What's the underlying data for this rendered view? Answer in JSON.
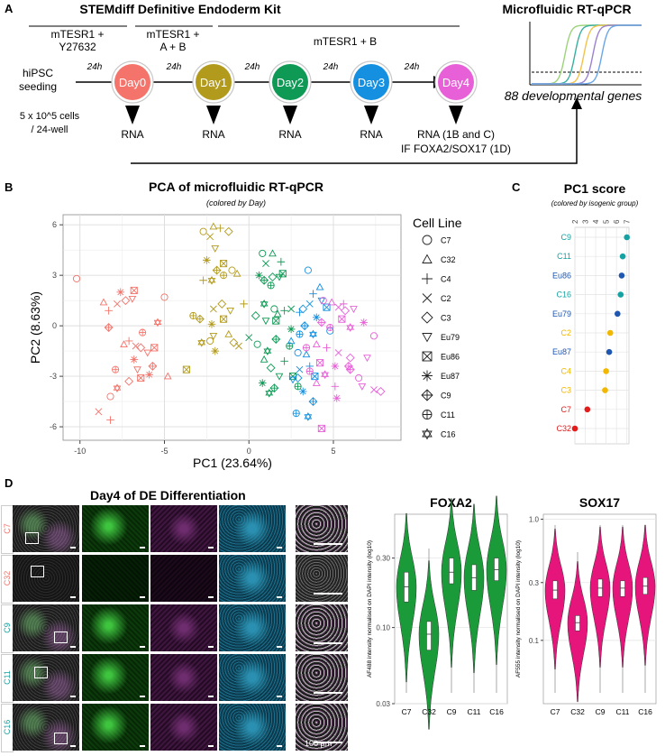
{
  "panelA": {
    "letter": "A",
    "title": "STEMdiff Definitive Endoderm Kit",
    "media": [
      {
        "line1": "mTESR1 +",
        "line2": "Y27632"
      },
      {
        "line1": "mTESR1 +",
        "line2": "A + B"
      },
      {
        "line1": "mTESR1 + B",
        "line2": ""
      }
    ],
    "start": {
      "line1": "hiPSC",
      "line2": "seeding"
    },
    "cells": {
      "line1": "5 x 10^5 cells",
      "line2": "/ 24-well"
    },
    "interval": "24h",
    "days": [
      {
        "label": "Day0",
        "color": "#f4736a",
        "rna": "RNA"
      },
      {
        "label": "Day1",
        "color": "#b29a1c",
        "rna": "RNA"
      },
      {
        "label": "Day2",
        "color": "#0e9a55",
        "rna": "RNA"
      },
      {
        "label": "Day3",
        "color": "#1590e0",
        "rna": "RNA"
      },
      {
        "label": "Day4",
        "color": "#e860d8",
        "rna": "RNA (1B and C)"
      }
    ],
    "if_label": "IF FOXA2/SOX17 (1D)",
    "rtqpcr_title": "Microfluidic RT-qPCR",
    "genes_label": "88 developmental genes"
  },
  "panelB": {
    "letter": "B",
    "title": "PCA of microfluidic RT-qPCR",
    "subtitle": "(colored by Day)",
    "legend_title": "Cell Line",
    "legend": [
      "C7",
      "C32",
      "C4",
      "C2",
      "C3",
      "Eu79",
      "Eu86",
      "Eu87",
      "C9",
      "C11",
      "C16"
    ],
    "xlabel": "PC1 (23.64%)",
    "ylabel": "PC2 (8.63%)",
    "xticks": [
      "-10",
      "-5",
      "0",
      "5"
    ],
    "yticks": [
      "6",
      "3",
      "0",
      "-3",
      "-6"
    ]
  },
  "chart_data": [
    {
      "type": "scatter",
      "title": "PCA of microfluidic RT-qPCR",
      "xlabel": "PC1 (23.64%)",
      "ylabel": "PC2 (8.63%)",
      "xlim": [
        -11,
        9
      ],
      "ylim": [
        -6.8,
        6.6
      ],
      "color_by": "Day",
      "series": [
        {
          "name": "Day0",
          "color": "#f4736a",
          "points": [
            [
              -10.2,
              2.8
            ],
            [
              -8.6,
              1.4
            ],
            [
              -8.3,
              0.9
            ],
            [
              -7.8,
              1.3
            ],
            [
              -7.3,
              1.5
            ],
            [
              -6.9,
              1.6
            ],
            [
              -6.8,
              2.1
            ],
            [
              -7.6,
              2.0
            ],
            [
              -8.3,
              -0.1
            ],
            [
              -7.9,
              -2.6
            ],
            [
              -7.8,
              -3.7
            ],
            [
              -8.2,
              -4.2
            ],
            [
              -7.4,
              -1.1
            ],
            [
              -7.1,
              -0.9
            ],
            [
              -6.7,
              -1.2
            ],
            [
              -6.4,
              -1.3
            ],
            [
              -6.6,
              -2.6
            ],
            [
              -6.4,
              -3.1
            ],
            [
              -5.9,
              -2.9
            ],
            [
              -5.7,
              -2.4
            ],
            [
              -6.3,
              -0.4
            ],
            [
              -5.4,
              0.2
            ],
            [
              -5.0,
              1.7
            ],
            [
              -4.8,
              -3.0
            ],
            [
              -8.2,
              -5.6
            ],
            [
              -8.9,
              -5.1
            ],
            [
              -7.1,
              -3.3
            ],
            [
              -6.0,
              -1.6
            ],
            [
              -5.6,
              -1.3
            ],
            [
              -6.8,
              -2.0
            ]
          ]
        },
        {
          "name": "Day1",
          "color": "#b29a1c",
          "points": [
            [
              -2.7,
              5.6
            ],
            [
              -2.1,
              5.9
            ],
            [
              -1.7,
              5.8
            ],
            [
              -2.3,
              5.3
            ],
            [
              -1.2,
              5.6
            ],
            [
              -2.0,
              4.6
            ],
            [
              -1.5,
              3.7
            ],
            [
              -2.5,
              3.9
            ],
            [
              -1.9,
              3.3
            ],
            [
              -1.5,
              3.0
            ],
            [
              -2.2,
              2.7
            ],
            [
              -1.0,
              3.3
            ],
            [
              -0.7,
              3.1
            ],
            [
              -2.7,
              2.7
            ],
            [
              -2.1,
              1.0
            ],
            [
              -1.6,
              1.3
            ],
            [
              -1.1,
              0.9
            ],
            [
              -1.5,
              0.4
            ],
            [
              -2.2,
              0.1
            ],
            [
              -2.9,
              0.4
            ],
            [
              -3.3,
              0.6
            ],
            [
              -2.8,
              -1.0
            ],
            [
              -2.3,
              -0.9
            ],
            [
              -1.2,
              -0.5
            ],
            [
              -0.3,
              1.3
            ],
            [
              -0.6,
              -1.2
            ],
            [
              -0.9,
              -1.0
            ],
            [
              -2.1,
              -0.6
            ],
            [
              -3.7,
              -2.6
            ],
            [
              -2.0,
              -1.5
            ]
          ]
        },
        {
          "name": "Day2",
          "color": "#0e9a55",
          "points": [
            [
              0.8,
              4.3
            ],
            [
              1.4,
              4.3
            ],
            [
              1.9,
              3.8
            ],
            [
              1.0,
              3.7
            ],
            [
              1.4,
              2.9
            ],
            [
              1.8,
              2.9
            ],
            [
              2.0,
              3.1
            ],
            [
              0.6,
              3.0
            ],
            [
              0.9,
              2.7
            ],
            [
              1.3,
              2.4
            ],
            [
              0.9,
              1.3
            ],
            [
              1.5,
              1.0
            ],
            [
              1.7,
              0.7
            ],
            [
              2.1,
              0.9
            ],
            [
              2.5,
              1.0
            ],
            [
              0.4,
              0.6
            ],
            [
              1.0,
              0.3
            ],
            [
              1.6,
              0.3
            ],
            [
              2.5,
              -0.2
            ],
            [
              1.6,
              -0.8
            ],
            [
              2.4,
              -1.2
            ],
            [
              1.1,
              -1.5
            ],
            [
              0.5,
              -1.1
            ],
            [
              0.9,
              -2.0
            ],
            [
              2.1,
              -2.1
            ],
            [
              0.0,
              -0.7
            ],
            [
              1.3,
              -2.5
            ],
            [
              1.8,
              -3.0
            ],
            [
              2.6,
              -3.0
            ],
            [
              0.8,
              -3.4
            ],
            [
              1.5,
              -3.7
            ],
            [
              2.9,
              -3.6
            ],
            [
              1.2,
              -4.0
            ]
          ]
        },
        {
          "name": "Day3",
          "color": "#1590e0",
          "points": [
            [
              3.5,
              3.3
            ],
            [
              4.2,
              2.3
            ],
            [
              3.8,
              1.9
            ],
            [
              3.6,
              1.3
            ],
            [
              3.2,
              1.0
            ],
            [
              4.3,
              1.5
            ],
            [
              4.6,
              1.1
            ],
            [
              4.0,
              0.5
            ],
            [
              3.3,
              0.0
            ],
            [
              3.0,
              -0.5
            ],
            [
              3.8,
              -0.5
            ],
            [
              2.9,
              -1.6
            ],
            [
              3.4,
              -1.7
            ],
            [
              3.6,
              -2.4
            ],
            [
              3.0,
              -2.6
            ],
            [
              2.9,
              -3.1
            ],
            [
              2.6,
              -3.2
            ],
            [
              3.9,
              -3.0
            ],
            [
              3.2,
              -3.9
            ],
            [
              3.8,
              -4.5
            ],
            [
              2.8,
              -5.2
            ],
            [
              3.5,
              -5.4
            ],
            [
              4.8,
              -0.3
            ],
            [
              2.5,
              -0.9
            ],
            [
              3.0,
              0.8
            ]
          ]
        },
        {
          "name": "Day4",
          "color": "#e860d8",
          "points": [
            [
              4.4,
              1.5
            ],
            [
              4.9,
              1.4
            ],
            [
              5.6,
              1.3
            ],
            [
              5.3,
              1.1
            ],
            [
              5.7,
              0.9
            ],
            [
              6.2,
              1.0
            ],
            [
              5.5,
              0.4
            ],
            [
              6.8,
              0.2
            ],
            [
              4.3,
              0.2
            ],
            [
              4.8,
              -0.1
            ],
            [
              6.0,
              -0.1
            ],
            [
              7.4,
              -0.6
            ],
            [
              4.0,
              -1.1
            ],
            [
              4.6,
              -1.3
            ],
            [
              5.3,
              -1.6
            ],
            [
              6.0,
              -1.9
            ],
            [
              7.0,
              -1.9
            ],
            [
              4.2,
              -2.2
            ],
            [
              5.1,
              -2.4
            ],
            [
              5.9,
              -2.4
            ],
            [
              3.6,
              -2.7
            ],
            [
              4.5,
              -2.9
            ],
            [
              6.5,
              -3.1
            ],
            [
              4.0,
              -3.4
            ],
            [
              5.1,
              -3.6
            ],
            [
              7.4,
              -3.8
            ],
            [
              7.8,
              -3.9
            ],
            [
              6.7,
              -3.6
            ],
            [
              4.3,
              -6.1
            ],
            [
              5.2,
              -4.3
            ],
            [
              6.0,
              -2.6
            ],
            [
              3.4,
              -1.3
            ]
          ]
        }
      ]
    },
    {
      "type": "dot",
      "title": "PC1 score",
      "subtitle": "(colored by isogenic group)",
      "xticks": [
        "2",
        "3",
        "4",
        "5",
        "6",
        "7"
      ],
      "xlim": [
        2,
        7.2
      ],
      "categories": [
        "C9",
        "C11",
        "Eu86",
        "C16",
        "Eu79",
        "C2",
        "Eu87",
        "C4",
        "C3",
        "C7",
        "C32"
      ],
      "values": [
        7.0,
        6.6,
        6.5,
        6.4,
        6.1,
        5.4,
        5.3,
        5.0,
        4.9,
        3.2,
        2.0
      ],
      "colors": [
        "#16a2a2",
        "#16a2a2",
        "#1e56b0",
        "#16a2a2",
        "#1e56b0",
        "#f2b800",
        "#1e56b0",
        "#f2b800",
        "#f2b800",
        "#e31c1c",
        "#e31c1c"
      ]
    },
    {
      "type": "violin",
      "title": "FOXA2",
      "ylabel": "AF488 intensity normalised on DAPI intensity (log10)",
      "yticks": [
        "0.30",
        "0.10",
        "0.03"
      ],
      "ylim": [
        0.03,
        0.6
      ],
      "color": "#1b9a3a",
      "categories": [
        "C7",
        "C32",
        "C9",
        "C11",
        "C16"
      ],
      "medians": [
        0.19,
        0.09,
        0.24,
        0.22,
        0.25
      ],
      "q1": [
        0.15,
        0.07,
        0.2,
        0.18,
        0.21
      ],
      "q3": [
        0.24,
        0.11,
        0.3,
        0.27,
        0.3
      ]
    },
    {
      "type": "violin",
      "title": "SOX17",
      "ylabel": "AF555 intensity normalised on DAPI intensity (log10)",
      "yticks": [
        "1.0",
        "0.3",
        "0.1"
      ],
      "ylim": [
        0.03,
        1.1
      ],
      "color": "#e5157b",
      "categories": [
        "C7",
        "C32",
        "C9",
        "C11",
        "C16"
      ],
      "medians": [
        0.26,
        0.14,
        0.27,
        0.27,
        0.28
      ],
      "q1": [
        0.22,
        0.12,
        0.23,
        0.23,
        0.24
      ],
      "q3": [
        0.31,
        0.16,
        0.32,
        0.31,
        0.33
      ]
    }
  ],
  "panelC": {
    "letter": "C",
    "title": "PC1 score",
    "subtitle": "(colored by isogenic group)"
  },
  "panelD": {
    "letter": "D",
    "title": "Day4 of DE Differentiation",
    "rows": [
      {
        "label": "C7",
        "color": "#f4736a"
      },
      {
        "label": "C32",
        "color": "#f4736a"
      },
      {
        "label": "C9",
        "color": "#16a2a2"
      },
      {
        "label": "C11",
        "color": "#16a2a2"
      },
      {
        "label": "C16",
        "color": "#16a2a2"
      }
    ],
    "scale_label": "100 µm"
  }
}
